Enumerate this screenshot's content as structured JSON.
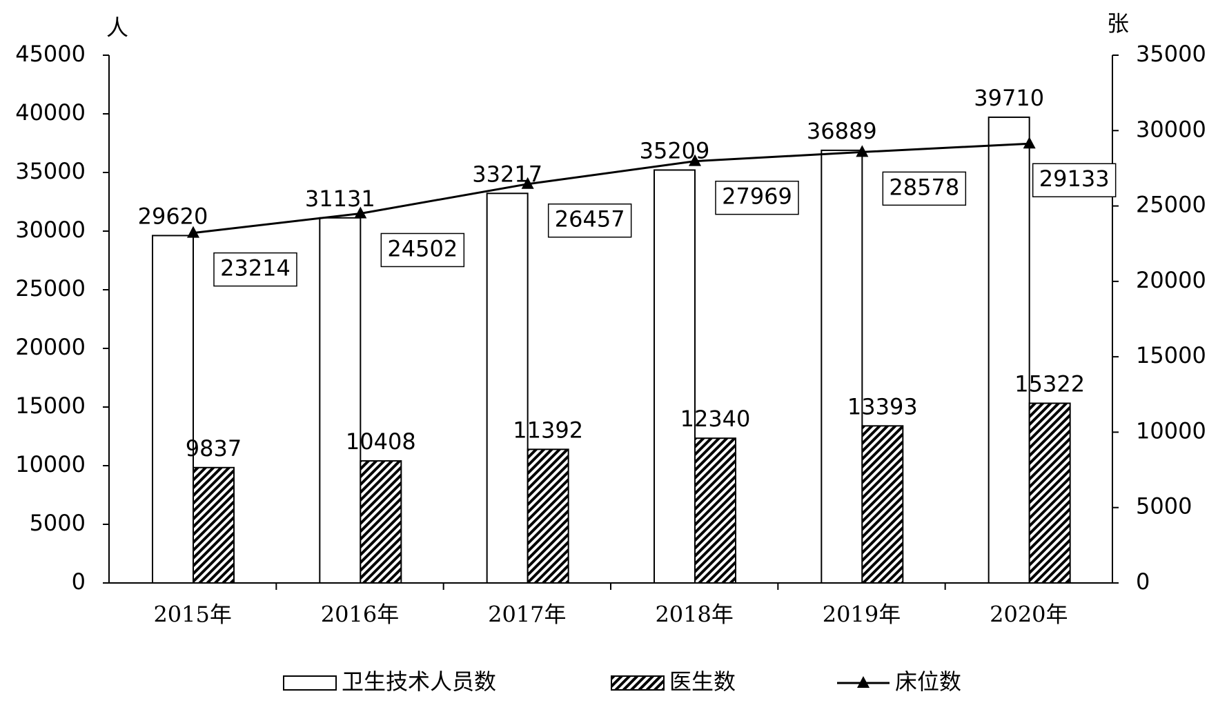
{
  "chart_data": {
    "type": "bar",
    "y_unit": "人",
    "y2_unit": "张",
    "categories": [
      "2015年",
      "2016年",
      "2017年",
      "2018年",
      "2019年",
      "2020年"
    ],
    "series": [
      {
        "name": "卫生技术人员数",
        "type": "bar",
        "color": "#ffffff",
        "values": [
          29620,
          31131,
          33217,
          35209,
          36889,
          39710
        ]
      },
      {
        "name": "医生数",
        "type": "bar",
        "color": "hatch",
        "values": [
          9837,
          10408,
          11392,
          12340,
          13393,
          15322
        ]
      },
      {
        "name": "床位数",
        "type": "line",
        "axis": "y2",
        "color": "#000000",
        "values": [
          23214,
          24502,
          26457,
          27969,
          28578,
          29133
        ]
      }
    ],
    "ylim": [
      0,
      45000
    ],
    "yticks": [
      0,
      5000,
      10000,
      15000,
      20000,
      25000,
      30000,
      35000,
      40000,
      45000
    ],
    "y2lim": [
      0,
      35000
    ],
    "y2ticks": [
      0,
      5000,
      10000,
      15000,
      20000,
      25000,
      30000,
      35000
    ],
    "grid": false
  }
}
